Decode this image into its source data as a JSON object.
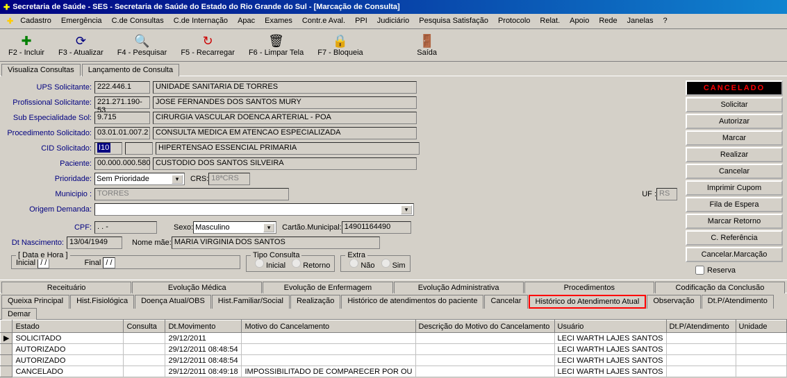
{
  "titlebar": "Secretaria de Saúde - SES - Secretaria de Saúde do Estado do Rio Grande do Sul - [Marcação de Consulta]",
  "menu": [
    "Cadastro",
    "Emergência",
    "C.de Consultas",
    "C.de Internação",
    "Apac",
    "Exames",
    "Contr.e Aval.",
    "PPI",
    "Judiciário",
    "Pesquisa Satisfação",
    "Protocolo",
    "Relat.",
    "Apoio",
    "Rede",
    "Janelas",
    "?"
  ],
  "toolbar": [
    {
      "icon": "✚",
      "label": "F2 - Incluir",
      "color": "#008000"
    },
    {
      "icon": "⟳",
      "label": "F3 - Atualizar",
      "color": "#000080"
    },
    {
      "icon": "🔍",
      "label": "F4 - Pesquisar",
      "color": "#cc8800"
    },
    {
      "icon": "↻",
      "label": "F5 - Recarregar",
      "color": "#cc0000"
    },
    {
      "icon": "🗑",
      "label": "F6 - Limpar Tela",
      "color": "#000"
    },
    {
      "icon": "🔒",
      "label": "F7 - Bloqueia",
      "color": "#000"
    },
    {
      "icon": "🚪",
      "label": "Saída",
      "color": "#996600"
    }
  ],
  "tabs1": [
    "Visualiza Consultas",
    "Lançamento de Consulta"
  ],
  "form": {
    "ups_label": "UPS Solicitante:",
    "ups_code": "222.446.1",
    "ups_name": "UNIDADE SANITARIA DE TORRES",
    "prof_label": "Profissional Solicitante:",
    "prof_code": "221.271.190-53",
    "prof_name": "JOSE FERNANDES DOS SANTOS MURY",
    "sub_label": "Sub Especialidade Sol:",
    "sub_code": "9.715",
    "sub_name": "CIRURGIA VASCULAR DOENCA ARTERIAL - POA",
    "proc_label": "Procedimento Solicitado:",
    "proc_code": "03.01.01.007.2",
    "proc_name": "CONSULTA MEDICA EM ATENCAO ESPECIALIZADA",
    "cid_label": "CID Solicitado:",
    "cid_code": "I10",
    "cid_name": "HIPERTENSAO ESSENCIAL  PRIMARIA",
    "pac_label": "Paciente:",
    "pac_code": "00.000.000.580",
    "pac_name": "CUSTODIO DOS SANTOS SILVEIRA",
    "prio_label": "Prioridade:",
    "prio_val": "Sem Prioridade",
    "crs_label": "CRS:",
    "crs_val": "18ªCRS",
    "mun_label": "Municipio :",
    "mun_val": "TORRES",
    "uf_label": "UF :",
    "uf_val": "RS",
    "orig_label": "Origem Demanda:",
    "orig_val": "",
    "cpf_label": "CPF:",
    "cpf_val": "   .   .   -",
    "sexo_label": "Sexo:",
    "sexo_val": "Masculino",
    "cartao_label": "Cartão.Municipal:",
    "cartao_val": "14901164490",
    "dtnasc_label": "Dt Nascimento:",
    "dtnasc_val": "13/04/1949",
    "mae_label": "Nome mãe:",
    "mae_val": "MARIA VIRGINIA DOS SANTOS",
    "datahora_legend": "[ Data e Hora ]",
    "inicial_label": "Inicial",
    "final_label": "Final",
    "dt_placeholder": "  /  /",
    "tipo_legend": "Tipo Consulta",
    "tipo_inicial": "Inicial",
    "tipo_retorno": "Retorno",
    "extra_legend": "Extra",
    "extra_nao": "Não",
    "extra_sim": "Sim",
    "reserva_label": "Reserva"
  },
  "buttons": {
    "cancelado": "CANCELADO",
    "list": [
      "Solicitar",
      "Autorizar",
      "Marcar",
      "Realizar",
      "Cancelar",
      "Imprimir Cupom",
      "Fila de Espera",
      "Marcar Retorno",
      "C. Referência",
      "Cancelar.Marcação"
    ]
  },
  "tabsTop": [
    "Receituário",
    "Evolução Médica",
    "Evolução de Enfermagem",
    "Evolução Administrativa",
    "Procedimentos",
    "Codificação da Conclusão"
  ],
  "tabsBottom": [
    "Queixa Principal",
    "Hist.Fisiológica",
    "Doença Atual/OBS",
    "Hist.Familiar/Social",
    "Realização",
    "Histórico de atendimentos do paciente",
    "Cancelar",
    "Histórico do Atendimento Atual",
    "Observação",
    "Dt.P/Atendimento",
    "Demar"
  ],
  "grid": {
    "columns": [
      "",
      "Estado",
      "Consulta",
      "Dt.Movimento",
      "Motivo do Cancelamento",
      "Descrição do Motivo do Cancelamento",
      "Usuário",
      "Dt.P/Atendimento",
      "Unidade"
    ],
    "rows": [
      {
        "marker": "▶",
        "estado": "SOLICITADO",
        "consulta": "",
        "dt": "29/12/2011",
        "motivo": "",
        "desc": "",
        "usuario": "LECI WARTH LAJES SANTOS",
        "dtp": "",
        "unidade": ""
      },
      {
        "marker": "",
        "estado": "AUTORIZADO",
        "consulta": "",
        "dt": "29/12/2011 08:48:54",
        "motivo": "",
        "desc": "",
        "usuario": "LECI WARTH LAJES SANTOS",
        "dtp": "",
        "unidade": ""
      },
      {
        "marker": "",
        "estado": "AUTORIZADO",
        "consulta": "",
        "dt": "29/12/2011 08:48:54",
        "motivo": "",
        "desc": "",
        "usuario": "LECI WARTH LAJES SANTOS",
        "dtp": "",
        "unidade": ""
      },
      {
        "marker": "",
        "estado": "CANCELADO",
        "consulta": "",
        "dt": "29/12/2011 08:49:18",
        "motivo": "IMPOSSIBILITADO DE COMPARECER POR OU",
        "desc": "",
        "usuario": "LECI WARTH LAJES SANTOS",
        "dtp": "",
        "unidade": ""
      }
    ]
  }
}
